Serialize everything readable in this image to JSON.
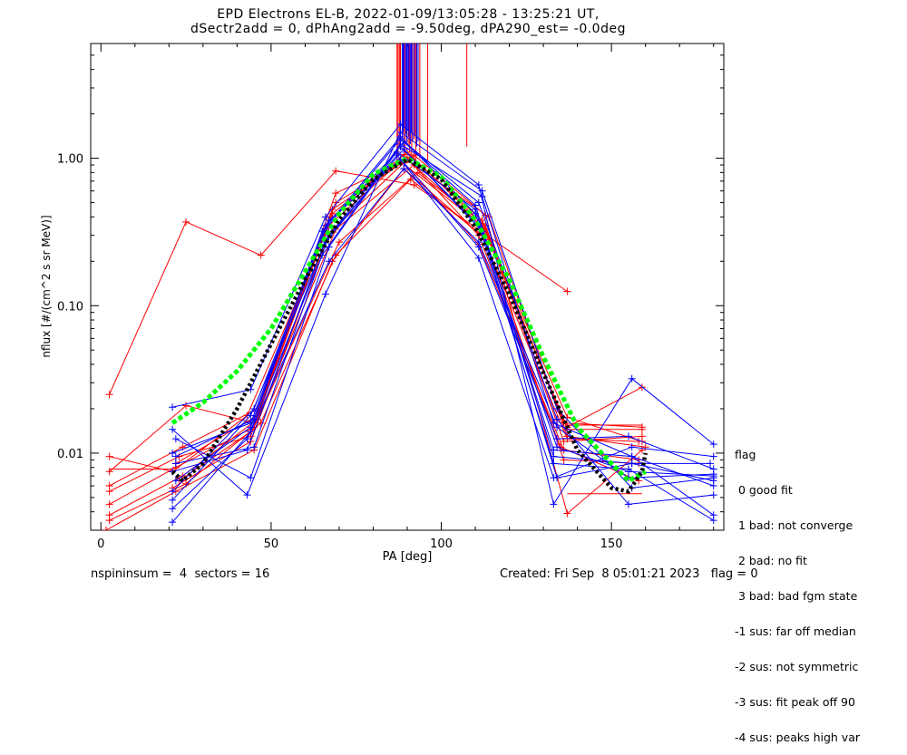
{
  "title": "EPD Electrons EL-B, 2022-01-09/13:05:28 - 13:25:21 UT,",
  "subtitle": "dSectr2add = 0, dPhAng2add = -9.50deg, dPA290_est=  -0.0deg",
  "footer_left": "nspininsum =  4  sectors = 16",
  "footer_right": "Created: Fri Sep  8 05:01:21 2023   flag = 0",
  "legend": {
    "title": "flag",
    "items": [
      " 0 good fit",
      " 1 bad: not converge",
      " 2 bad: no fit",
      " 3 bad: bad fgm state",
      "-1 sus: far off median",
      "-2 sus: not symmetric",
      "-3 sus: fit peak off 90",
      "-4 sus: peaks high var"
    ]
  },
  "chart_data": {
    "type": "line",
    "xlabel": "PA [deg]",
    "ylabel": "nflux [#/(cm^2 s sr MeV)]",
    "xlim": [
      -3,
      183
    ],
    "ylim": [
      0.003,
      6.0
    ],
    "yscale": "log",
    "x_ticks": [
      0,
      50,
      100,
      150
    ],
    "x_tick_labels": [
      "0",
      "50",
      "100",
      "150"
    ],
    "y_ticks": [
      0.01,
      0.1,
      1.0
    ],
    "y_tick_labels": [
      "0.01",
      "0.10",
      "1.00"
    ],
    "colors": {
      "blue": "#0000ff",
      "red": "#ff0000",
      "green": "#00ff00",
      "black": "#000000"
    },
    "series": [
      {
        "color": "#ff0000",
        "x": [
          2.5,
          25,
          47,
          69,
          92,
          137
        ],
        "y": [
          0.025,
          0.37,
          0.22,
          0.82,
          0.66,
          0.125
        ]
      },
      {
        "color": "#ff0000",
        "x": [
          2.5,
          21,
          43,
          67,
          88,
          112,
          137,
          159
        ],
        "y": [
          0.0095,
          0.0075,
          0.018,
          0.35,
          0.95,
          0.35,
          0.015,
          0.028
        ]
      },
      {
        "color": "#ff0000",
        "x": [
          2.5,
          25,
          45,
          69,
          90,
          113,
          137,
          159
        ],
        "y": [
          0.0075,
          0.021,
          0.016,
          0.58,
          0.98,
          0.33,
          0.0145,
          0.0145
        ]
      },
      {
        "color": "#ff0000",
        "x": [
          2.5,
          24,
          46,
          68,
          91,
          112,
          136,
          159
        ],
        "y": [
          0.006,
          0.011,
          0.02,
          0.45,
          1.02,
          0.38,
          0.016,
          0.015
        ]
      },
      {
        "color": "#ff0000",
        "x": [
          2.5,
          23,
          44,
          67,
          89,
          111,
          135,
          158
        ],
        "y": [
          0.0055,
          0.0095,
          0.013,
          0.38,
          1.06,
          0.3,
          0.011,
          0.0065
        ]
      },
      {
        "color": "#ff0000",
        "x": [
          2.5,
          22,
          45,
          69,
          92,
          114,
          137,
          160
        ],
        "y": [
          0.0045,
          0.008,
          0.015,
          0.33,
          0.9,
          0.4,
          0.013,
          0.011
        ]
      },
      {
        "color": "#ff0000",
        "x": [
          2.5,
          24,
          46,
          70,
          93,
          113,
          136,
          159
        ],
        "y": [
          0.0038,
          0.007,
          0.017,
          0.27,
          0.8,
          0.35,
          0.012,
          0.013
        ]
      },
      {
        "color": "#ff0000",
        "x": [
          2.5,
          25,
          47,
          69,
          91,
          112,
          137,
          158
        ],
        "y": [
          0.0035,
          0.0062,
          0.016,
          0.22,
          0.72,
          0.3,
          0.0125,
          0.012
        ]
      },
      {
        "color": "#ff0000",
        "x": [
          1.5,
          22,
          45,
          68,
          89,
          113,
          136,
          158
        ],
        "y": [
          0.003,
          0.0055,
          0.0105,
          0.2,
          0.85,
          0.28,
          0.009,
          0.0085
        ]
      },
      {
        "color": "#ff0000",
        "x": [
          22,
          46,
          68,
          90,
          112,
          137,
          159
        ],
        "y": [
          0.0085,
          0.018,
          0.42,
          1.1,
          0.36,
          0.0175,
          0.012
        ]
      },
      {
        "color": "#ff0000",
        "x": [
          23,
          44,
          69,
          92,
          113,
          137,
          159
        ],
        "y": [
          0.0065,
          0.014,
          0.5,
          1.05,
          0.41,
          0.0039,
          0.0105
        ]
      },
      {
        "color": "#ff0000",
        "x": [
          21,
          44,
          67,
          89,
          111,
          136,
          158
        ],
        "y": [
          0.0058,
          0.012,
          0.31,
          0.93,
          0.26,
          0.0105,
          0.009
        ]
      },
      {
        "color": "#0000ff",
        "x": [
          21,
          44,
          66,
          88,
          111,
          133,
          156,
          180
        ],
        "y": [
          0.0205,
          0.027,
          0.4,
          1.7,
          0.66,
          0.0045,
          0.032,
          0.0115
        ]
      },
      {
        "color": "#0000ff",
        "x": [
          21,
          43,
          66,
          88,
          112,
          134,
          156,
          180
        ],
        "y": [
          0.0145,
          0.0052,
          0.12,
          1.5,
          0.6,
          0.02,
          0.0058,
          0.0068
        ]
      },
      {
        "color": "#0000ff",
        "x": [
          22,
          44,
          67,
          89,
          111,
          134,
          155,
          180
        ],
        "y": [
          0.0125,
          0.0068,
          0.25,
          1.3,
          0.5,
          0.017,
          0.0045,
          0.0052
        ]
      },
      {
        "color": "#0000ff",
        "x": [
          21,
          44,
          66,
          87,
          110,
          133,
          156,
          180
        ],
        "y": [
          0.01,
          0.016,
          0.35,
          1.1,
          0.45,
          0.0105,
          0.0095,
          0.0038
        ]
      },
      {
        "color": "#0000ff",
        "x": [
          22,
          45,
          67,
          88,
          111,
          133,
          155,
          180
        ],
        "y": [
          0.0085,
          0.011,
          0.3,
          1.2,
          0.35,
          0.0085,
          0.0078,
          0.0035
        ]
      },
      {
        "color": "#0000ff",
        "x": [
          21,
          43,
          66,
          89,
          112,
          134,
          156,
          180
        ],
        "y": [
          0.0075,
          0.0105,
          0.28,
          1.15,
          0.32,
          0.0068,
          0.0085,
          0.0065
        ]
      },
      {
        "color": "#0000ff",
        "x": [
          22,
          44,
          65,
          88,
          110,
          134,
          155,
          180
        ],
        "y": [
          0.0065,
          0.015,
          0.32,
          1.4,
          0.42,
          0.011,
          0.0075,
          0.007
        ]
      },
      {
        "color": "#0000ff",
        "x": [
          21,
          45,
          67,
          88,
          111,
          133,
          156,
          180
        ],
        "y": [
          0.0055,
          0.02,
          0.38,
          0.98,
          0.21,
          0.0068,
          0.011,
          0.0095
        ]
      },
      {
        "color": "#0000ff",
        "x": [
          21,
          44,
          66,
          87,
          111,
          134,
          155,
          180
        ],
        "y": [
          0.0048,
          0.018,
          0.27,
          1.05,
          0.25,
          0.0125,
          0.013,
          0.0078
        ]
      },
      {
        "color": "#0000ff",
        "x": [
          21,
          43,
          65,
          88,
          112,
          133,
          156,
          180
        ],
        "y": [
          0.0042,
          0.0125,
          0.22,
          1.25,
          0.55,
          0.016,
          0.0095,
          0.006
        ]
      },
      {
        "color": "#0000ff",
        "x": [
          21,
          44,
          67,
          89,
          111,
          134,
          155,
          180
        ],
        "y": [
          0.0034,
          0.014,
          0.2,
          0.85,
          0.27,
          0.015,
          0.0068,
          0.0072
        ]
      },
      {
        "color": "#0000ff",
        "x": [
          22,
          45,
          66,
          88,
          110,
          133,
          156,
          179
        ],
        "y": [
          0.0095,
          0.017,
          0.33,
          1.35,
          0.48,
          0.0095,
          0.0085,
          0.0085
        ]
      },
      {
        "color": "#00ff00",
        "style": "dashed",
        "x": [
          21,
          30,
          40,
          50,
          60,
          70,
          80,
          90,
          100,
          110,
          120,
          130,
          140,
          150,
          155,
          160
        ],
        "y": [
          0.016,
          0.022,
          0.036,
          0.07,
          0.17,
          0.42,
          0.78,
          1.0,
          0.75,
          0.38,
          0.15,
          0.045,
          0.015,
          0.0085,
          0.0065,
          0.0075
        ]
      },
      {
        "color": "#000000",
        "style": "dotted",
        "x": [
          21,
          24,
          30,
          40,
          50,
          60,
          70,
          80,
          90,
          100,
          110,
          120,
          130,
          140,
          150,
          155,
          159,
          160
        ],
        "y": [
          0.0075,
          0.0065,
          0.0085,
          0.02,
          0.055,
          0.15,
          0.38,
          0.72,
          0.98,
          0.72,
          0.34,
          0.12,
          0.035,
          0.0105,
          0.0058,
          0.0055,
          0.0075,
          0.01
        ]
      }
    ],
    "spikes": {
      "color": "#ff0000",
      "items": [
        {
          "x": 87.0,
          "y": 0.95
        },
        {
          "x": 87.3,
          "y": 1.05
        },
        {
          "x": 87.7,
          "y": 1.2
        },
        {
          "x": 88.0,
          "y": 1.3
        },
        {
          "x": 89.0,
          "y": 1.15
        },
        {
          "x": 89.4,
          "y": 1.05
        },
        {
          "x": 90.3,
          "y": 1.25
        },
        {
          "x": 90.7,
          "y": 1.1
        },
        {
          "x": 91.3,
          "y": 1.0
        },
        {
          "x": 92.0,
          "y": 1.35
        },
        {
          "x": 92.5,
          "y": 0.95
        },
        {
          "x": 93.7,
          "y": 1.0
        },
        {
          "x": 96.0,
          "y": 0.95
        },
        {
          "x": 107.5,
          "y": 1.2
        }
      ]
    },
    "spikes_blue": {
      "color": "#0000ff",
      "items": [
        {
          "x": 88.5,
          "y": 1.35
        },
        {
          "x": 88.8,
          "y": 1.5
        },
        {
          "x": 89.1,
          "y": 1.6
        },
        {
          "x": 89.6,
          "y": 1.45
        },
        {
          "x": 89.9,
          "y": 1.3
        },
        {
          "x": 90.2,
          "y": 1.55
        },
        {
          "x": 90.5,
          "y": 1.4
        },
        {
          "x": 90.9,
          "y": 1.25
        },
        {
          "x": 91.2,
          "y": 1.5
        },
        {
          "x": 91.6,
          "y": 1.3
        },
        {
          "x": 92.2,
          "y": 1.45
        },
        {
          "x": 92.8,
          "y": 1.2
        },
        {
          "x": 93.2,
          "y": 1.3
        }
      ]
    },
    "redbox": {
      "color": "#ff0000",
      "x": [
        137,
        159
      ],
      "y": [
        0.0053,
        0.0155
      ]
    },
    "redbox2": {
      "color": "#ff0000",
      "x": [
        2.5,
        21
      ],
      "y": [
        0.0078,
        0.0078
      ]
    }
  }
}
